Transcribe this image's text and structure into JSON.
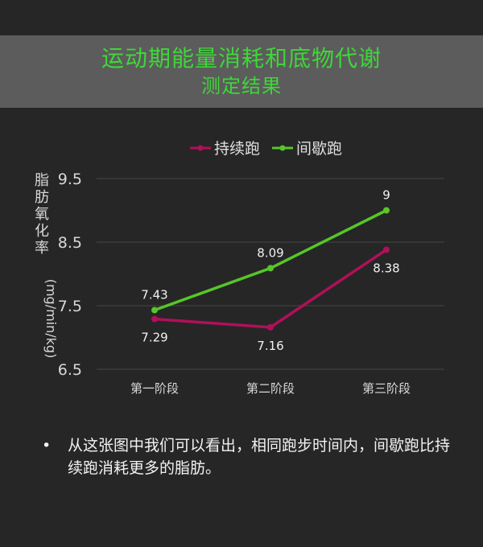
{
  "banner": {
    "title": "运动期能量消耗和底物代谢",
    "subtitle": "测定结果"
  },
  "chart_data": {
    "type": "line",
    "ylabel_main": "脂肪氧化率",
    "ylabel_unit": "(mg/min/kg)",
    "categories": [
      "第一阶段",
      "第二阶段",
      "第三阶段"
    ],
    "yticks": [
      "9.5",
      "8.5",
      "7.5",
      "6.5"
    ],
    "ylim": [
      6.5,
      9.5
    ],
    "grid": true,
    "legend_position": "top",
    "series": [
      {
        "name": "持续跑",
        "values": [
          7.29,
          7.16,
          8.38
        ],
        "labels": [
          "7.29",
          "7.16",
          "8.38"
        ],
        "color": "#b0105a",
        "label_side": "below"
      },
      {
        "name": "间歇跑",
        "values": [
          7.43,
          8.09,
          9
        ],
        "labels": [
          "7.43",
          "8.09",
          "9"
        ],
        "color": "#56c62a",
        "label_side": "above"
      }
    ]
  },
  "note": {
    "bullet": "•",
    "text": "从这张图中我们可以看出，相同跑步时间内，间歇跑比持续跑消耗更多的脂肪。"
  }
}
